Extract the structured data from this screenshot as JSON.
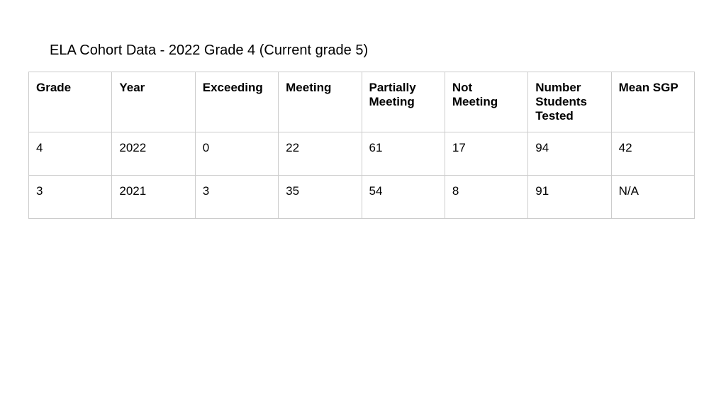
{
  "title": "ELA Cohort Data - 2022 Grade 4 (Current grade 5)",
  "table": {
    "columns": [
      "Grade",
      "Year",
      "Exceeding",
      "Meeting",
      "Partially Meeting",
      "Not Meeting",
      "Number Students Tested",
      "Mean SGP"
    ],
    "rows": [
      [
        "4",
        "2022",
        "0",
        "22",
        "61",
        "17",
        "94",
        "42"
      ],
      [
        "3",
        "2021",
        "3",
        "35",
        "54",
        "8",
        "91",
        "N/A"
      ]
    ],
    "border_color": "#cccccc",
    "header_fontsize": 17,
    "cell_fontsize": 17,
    "header_fontweight": 700,
    "background_color": "#ffffff",
    "text_color": "#000000"
  }
}
